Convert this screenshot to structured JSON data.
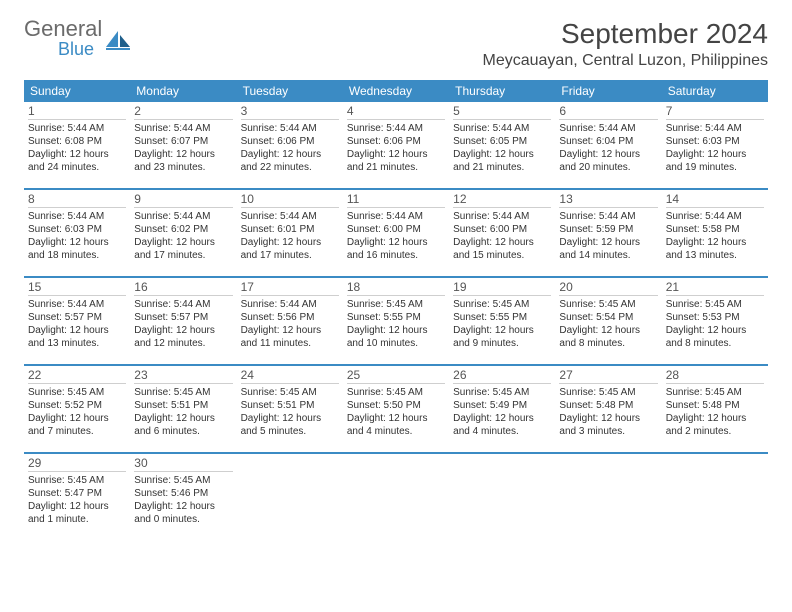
{
  "brand": {
    "word1": "General",
    "word2": "Blue"
  },
  "title": "September 2024",
  "location": "Meycauayan, Central Luzon, Philippines",
  "colors": {
    "accent": "#3b8bc4",
    "text": "#333333",
    "header_text": "#444444",
    "logo_gray": "#6b6b6b",
    "background": "#ffffff",
    "rule": "#cfcfcf"
  },
  "fonts": {
    "title_pt": 28,
    "location_pt": 16,
    "weekday_pt": 12,
    "daynum_pt": 12,
    "body_pt": 10
  },
  "weekdays": [
    "Sunday",
    "Monday",
    "Tuesday",
    "Wednesday",
    "Thursday",
    "Friday",
    "Saturday"
  ],
  "days": [
    {
      "n": "1",
      "sunrise": "5:44 AM",
      "sunset": "6:08 PM",
      "daylight": "12 hours and 24 minutes."
    },
    {
      "n": "2",
      "sunrise": "5:44 AM",
      "sunset": "6:07 PM",
      "daylight": "12 hours and 23 minutes."
    },
    {
      "n": "3",
      "sunrise": "5:44 AM",
      "sunset": "6:06 PM",
      "daylight": "12 hours and 22 minutes."
    },
    {
      "n": "4",
      "sunrise": "5:44 AM",
      "sunset": "6:06 PM",
      "daylight": "12 hours and 21 minutes."
    },
    {
      "n": "5",
      "sunrise": "5:44 AM",
      "sunset": "6:05 PM",
      "daylight": "12 hours and 21 minutes."
    },
    {
      "n": "6",
      "sunrise": "5:44 AM",
      "sunset": "6:04 PM",
      "daylight": "12 hours and 20 minutes."
    },
    {
      "n": "7",
      "sunrise": "5:44 AM",
      "sunset": "6:03 PM",
      "daylight": "12 hours and 19 minutes."
    },
    {
      "n": "8",
      "sunrise": "5:44 AM",
      "sunset": "6:03 PM",
      "daylight": "12 hours and 18 minutes."
    },
    {
      "n": "9",
      "sunrise": "5:44 AM",
      "sunset": "6:02 PM",
      "daylight": "12 hours and 17 minutes."
    },
    {
      "n": "10",
      "sunrise": "5:44 AM",
      "sunset": "6:01 PM",
      "daylight": "12 hours and 17 minutes."
    },
    {
      "n": "11",
      "sunrise": "5:44 AM",
      "sunset": "6:00 PM",
      "daylight": "12 hours and 16 minutes."
    },
    {
      "n": "12",
      "sunrise": "5:44 AM",
      "sunset": "6:00 PM",
      "daylight": "12 hours and 15 minutes."
    },
    {
      "n": "13",
      "sunrise": "5:44 AM",
      "sunset": "5:59 PM",
      "daylight": "12 hours and 14 minutes."
    },
    {
      "n": "14",
      "sunrise": "5:44 AM",
      "sunset": "5:58 PM",
      "daylight": "12 hours and 13 minutes."
    },
    {
      "n": "15",
      "sunrise": "5:44 AM",
      "sunset": "5:57 PM",
      "daylight": "12 hours and 13 minutes."
    },
    {
      "n": "16",
      "sunrise": "5:44 AM",
      "sunset": "5:57 PM",
      "daylight": "12 hours and 12 minutes."
    },
    {
      "n": "17",
      "sunrise": "5:44 AM",
      "sunset": "5:56 PM",
      "daylight": "12 hours and 11 minutes."
    },
    {
      "n": "18",
      "sunrise": "5:45 AM",
      "sunset": "5:55 PM",
      "daylight": "12 hours and 10 minutes."
    },
    {
      "n": "19",
      "sunrise": "5:45 AM",
      "sunset": "5:55 PM",
      "daylight": "12 hours and 9 minutes."
    },
    {
      "n": "20",
      "sunrise": "5:45 AM",
      "sunset": "5:54 PM",
      "daylight": "12 hours and 8 minutes."
    },
    {
      "n": "21",
      "sunrise": "5:45 AM",
      "sunset": "5:53 PM",
      "daylight": "12 hours and 8 minutes."
    },
    {
      "n": "22",
      "sunrise": "5:45 AM",
      "sunset": "5:52 PM",
      "daylight": "12 hours and 7 minutes."
    },
    {
      "n": "23",
      "sunrise": "5:45 AM",
      "sunset": "5:51 PM",
      "daylight": "12 hours and 6 minutes."
    },
    {
      "n": "24",
      "sunrise": "5:45 AM",
      "sunset": "5:51 PM",
      "daylight": "12 hours and 5 minutes."
    },
    {
      "n": "25",
      "sunrise": "5:45 AM",
      "sunset": "5:50 PM",
      "daylight": "12 hours and 4 minutes."
    },
    {
      "n": "26",
      "sunrise": "5:45 AM",
      "sunset": "5:49 PM",
      "daylight": "12 hours and 4 minutes."
    },
    {
      "n": "27",
      "sunrise": "5:45 AM",
      "sunset": "5:48 PM",
      "daylight": "12 hours and 3 minutes."
    },
    {
      "n": "28",
      "sunrise": "5:45 AM",
      "sunset": "5:48 PM",
      "daylight": "12 hours and 2 minutes."
    },
    {
      "n": "29",
      "sunrise": "5:45 AM",
      "sunset": "5:47 PM",
      "daylight": "12 hours and 1 minute."
    },
    {
      "n": "30",
      "sunrise": "5:45 AM",
      "sunset": "5:46 PM",
      "daylight": "12 hours and 0 minutes."
    }
  ],
  "labels": {
    "sunrise": "Sunrise:",
    "sunset": "Sunset:",
    "daylight": "Daylight:"
  },
  "layout": {
    "columns": 7,
    "rows": 5,
    "start_offset": 0
  }
}
